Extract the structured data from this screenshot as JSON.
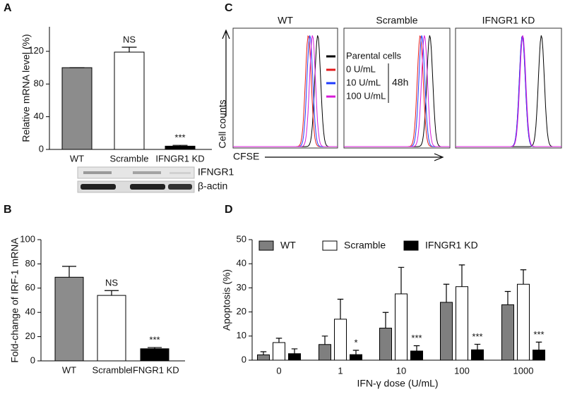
{
  "chart_data": [
    {
      "type": "bar",
      "panel": "A",
      "ylabel": "Relative mRNA level (%)",
      "categories": [
        "WT",
        "Scramble",
        "IFNGR1 KD"
      ],
      "values": [
        100,
        119,
        4
      ],
      "errors": [
        0,
        6,
        1
      ],
      "colors": [
        "#8c8c8c",
        "#ffffff",
        "#000000"
      ],
      "annotations": [
        null,
        "NS",
        "***"
      ],
      "ylim": [
        0,
        150
      ],
      "yticks": [
        0,
        40,
        80,
        120
      ],
      "blot_labels": [
        "IFNGR1",
        "β-actin"
      ]
    },
    {
      "type": "bar",
      "panel": "B",
      "ylabel": "Fold-change of IRF-1 mRNA",
      "categories": [
        "WT",
        "Scramble",
        "IFNGR1 KD"
      ],
      "values": [
        69,
        54,
        10
      ],
      "errors": [
        9,
        4,
        1
      ],
      "colors": [
        "#8c8c8c",
        "#ffffff",
        "#000000"
      ],
      "annotations": [
        null,
        "NS",
        "***"
      ],
      "ylim": [
        0,
        100
      ],
      "yticks": [
        0,
        20,
        40,
        60,
        80,
        100
      ]
    },
    {
      "type": "histogram-overlay",
      "panel": "C",
      "panels": [
        "WT",
        "Scramble",
        "IFNGR1 KD"
      ],
      "xlabel": "CFSE",
      "ylabel": "Cell counts",
      "group_label": "48h",
      "series": [
        {
          "name": "Parental cells",
          "color": "#000000"
        },
        {
          "name": "0 U/mL",
          "color": "#e41a1c"
        },
        {
          "name": "10 U/mL",
          "color": "#1f3bff"
        },
        {
          "name": "100 U/mL",
          "color": "#d81bd8"
        }
      ]
    },
    {
      "type": "grouped-bar",
      "panel": "D",
      "xlabel": "IFN-γ dose (U/mL)",
      "ylabel": "Apoptosis (%)",
      "categories": [
        "0",
        "1",
        "10",
        "100",
        "1000"
      ],
      "series": [
        {
          "name": "WT",
          "color": "#7f7f7f",
          "values": [
            2.2,
            6.5,
            13.3,
            24,
            23
          ],
          "errors": [
            1.3,
            3.5,
            6.5,
            7.5,
            5.5
          ],
          "annotations": [
            null,
            null,
            null,
            null,
            null
          ]
        },
        {
          "name": "Scramble",
          "color": "#ffffff",
          "values": [
            7.3,
            17,
            27.5,
            30.5,
            31.5
          ],
          "errors": [
            1.8,
            8.3,
            11,
            9,
            6
          ],
          "annotations": [
            null,
            null,
            null,
            null,
            null
          ]
        },
        {
          "name": "IFNGR1 KD",
          "color": "#000000",
          "values": [
            2.7,
            2.3,
            3.8,
            4.3,
            4.2
          ],
          "errors": [
            2,
            1.8,
            2.2,
            2.3,
            3.3
          ],
          "annotations": [
            null,
            "*",
            "***",
            "***",
            "***"
          ]
        }
      ],
      "ylim": [
        0,
        50
      ],
      "yticks": [
        0,
        10,
        20,
        30,
        40,
        50
      ]
    }
  ]
}
